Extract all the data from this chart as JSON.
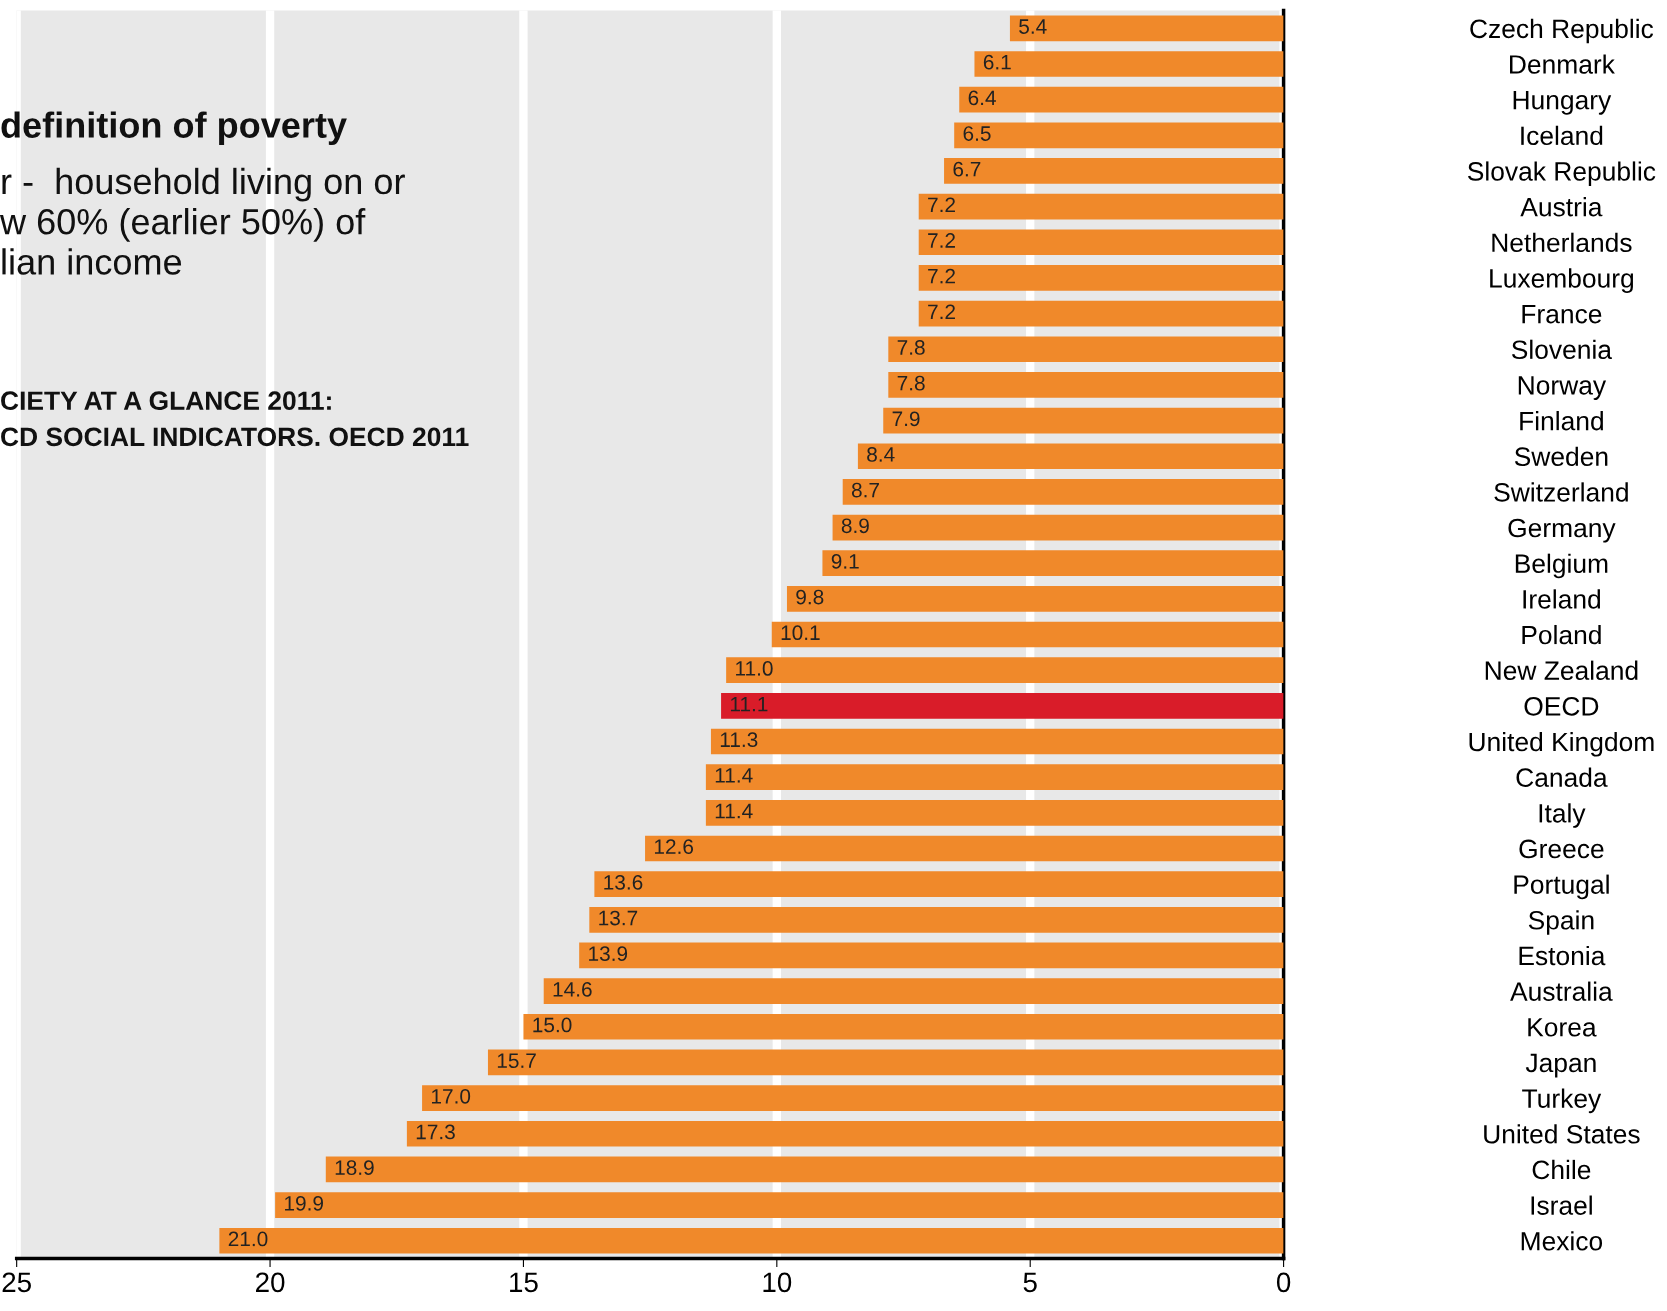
{
  "chart_data": {
    "type": "bar",
    "orientation": "horizontal",
    "categories": [
      "Czech Republic",
      "Denmark",
      "Hungary",
      "Iceland",
      "Slovak Republic",
      "Austria",
      "Netherlands",
      "Luxembourg",
      "France",
      "Slovenia",
      "Norway",
      "Finland",
      "Sweden",
      "Switzerland",
      "Germany",
      "Belgium",
      "Ireland",
      "Poland",
      "New Zealand",
      "OECD",
      "United Kingdom",
      "Canada",
      "Italy",
      "Greece",
      "Portugal",
      "Spain",
      "Estonia",
      "Australia",
      "Korea",
      "Japan",
      "Turkey",
      "United States",
      "Chile",
      "Israel",
      "Mexico"
    ],
    "values": [
      5.4,
      6.1,
      6.4,
      6.5,
      6.7,
      7.2,
      7.2,
      7.2,
      7.2,
      7.8,
      7.8,
      7.9,
      8.4,
      8.7,
      8.9,
      9.1,
      9.8,
      10.1,
      11.0,
      11.1,
      11.3,
      11.4,
      11.4,
      12.6,
      13.6,
      13.7,
      13.9,
      14.6,
      15.0,
      15.7,
      17.0,
      17.3,
      18.9,
      19.9,
      21.0
    ],
    "value_labels": [
      "5.4",
      "6.1",
      "6.4",
      "6.5",
      "6.7",
      "7.2",
      "7.2",
      "7.2",
      "7.2",
      "7.8",
      "7.8",
      "7.9",
      "8.4",
      "8.7",
      "8.9",
      "9.1",
      "9.8",
      "10.1",
      "11.0",
      "11.1",
      "11.3",
      "11.4",
      "11.4",
      "12.6",
      "13.6",
      "13.7",
      "13.9",
      "14.6",
      "15.0",
      "15.7",
      "17.0",
      "17.3",
      "18.9",
      "19.9",
      "21.0"
    ],
    "colors": [
      "#f0892a",
      "#f0892a",
      "#f0892a",
      "#f0892a",
      "#f0892a",
      "#f0892a",
      "#f0892a",
      "#f0892a",
      "#f0892a",
      "#f0892a",
      "#f0892a",
      "#f0892a",
      "#f0892a",
      "#f0892a",
      "#f0892a",
      "#f0892a",
      "#f0892a",
      "#f0892a",
      "#f0892a",
      "#d91c29",
      "#f0892a",
      "#f0892a",
      "#f0892a",
      "#f0892a",
      "#f0892a",
      "#f0892a",
      "#f0892a",
      "#f0892a",
      "#f0892a",
      "#f0892a",
      "#f0892a",
      "#f0892a",
      "#f0892a",
      "#f0892a",
      "#f0892a"
    ],
    "xlim": [
      25,
      0
    ],
    "xticks": [
      25,
      20,
      15,
      10,
      5,
      0
    ],
    "grid": "x",
    "annotations": [
      "definition of poverty",
      "r -  household living on or\nw 60% (earlier 50%) of\nlian income",
      "CIETY AT A GLANCE 2011:\nCD SOCIAL INDICATORS. OECD 2011"
    ]
  }
}
